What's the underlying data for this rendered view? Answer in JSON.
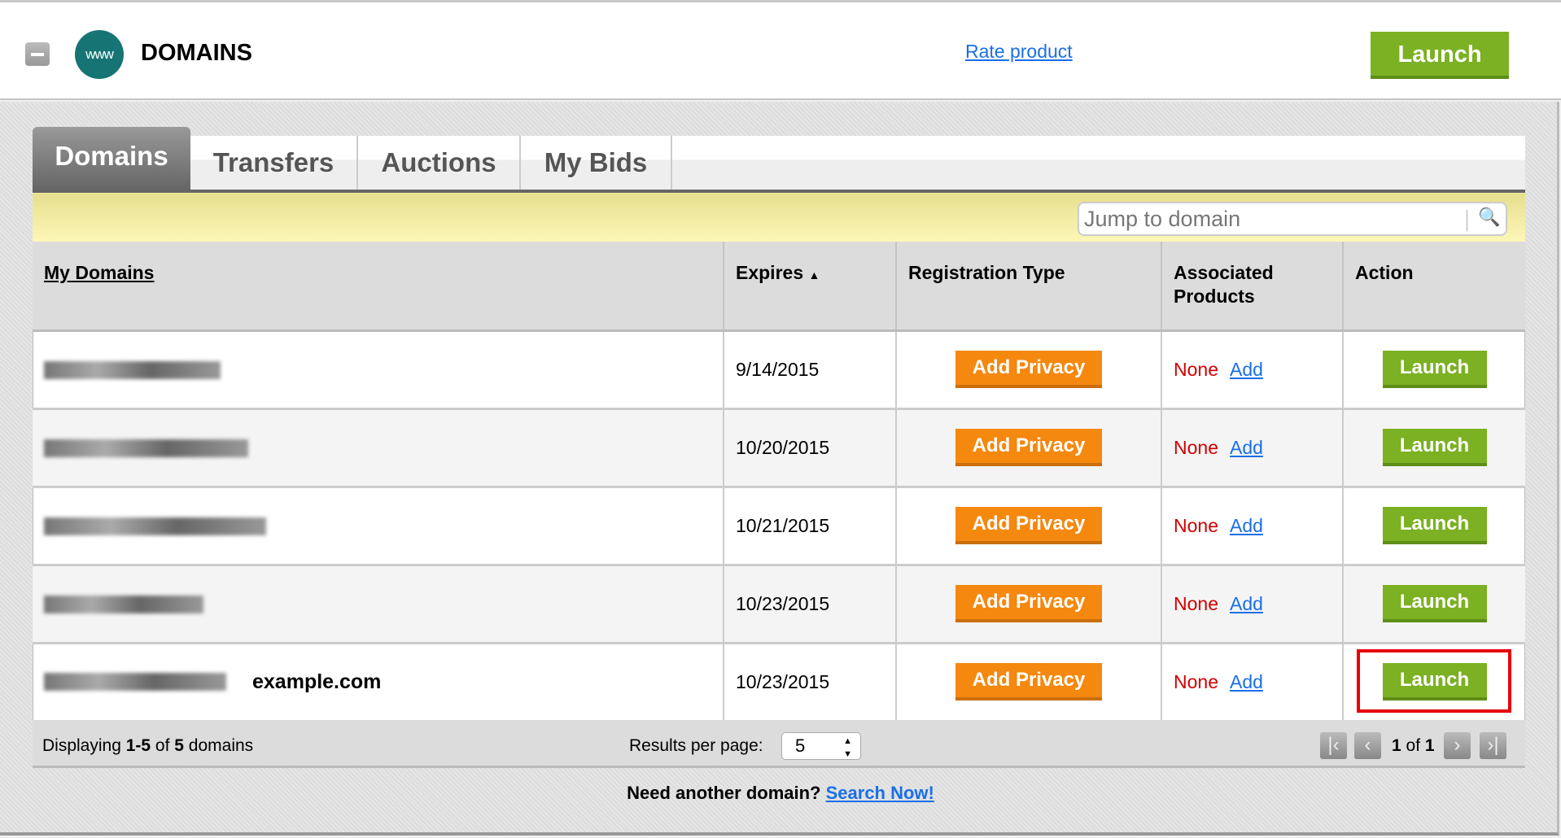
{
  "header": {
    "title": "DOMAINS",
    "logo_text": "www",
    "rate_link": "Rate product",
    "launch_label": "Launch"
  },
  "tabs": [
    {
      "label": "Domains",
      "active": true
    },
    {
      "label": "Transfers"
    },
    {
      "label": "Auctions"
    },
    {
      "label": "My Bids"
    }
  ],
  "search": {
    "placeholder": "Jump to domain"
  },
  "table": {
    "columns": [
      "My Domains",
      "Expires",
      "Registration Type",
      "Associated Products",
      "Action"
    ],
    "sort_indicator": "▲",
    "rows": [
      {
        "domain": "",
        "label": "",
        "expires": "9/14/2015",
        "registration": "Add Privacy",
        "products": "None",
        "add": "Add",
        "action": "Launch"
      },
      {
        "domain": "",
        "label": "",
        "expires": "10/20/2015",
        "registration": "Add Privacy",
        "products": "None",
        "add": "Add",
        "action": "Launch"
      },
      {
        "domain": "",
        "label": "",
        "expires": "10/21/2015",
        "registration": "Add Privacy",
        "products": "None",
        "add": "Add",
        "action": "Launch"
      },
      {
        "domain": "",
        "label": "",
        "expires": "10/23/2015",
        "registration": "Add Privacy",
        "products": "None",
        "add": "Add",
        "action": "Launch"
      },
      {
        "domain": "",
        "label": "example.com",
        "expires": "10/23/2015",
        "registration": "Add Privacy",
        "products": "None",
        "add": "Add",
        "action": "Launch",
        "highlighted": true
      }
    ]
  },
  "footer": {
    "displaying_prefix": "Displaying ",
    "range": "1-5",
    "of": " of ",
    "total": "5",
    "suffix": " domains",
    "results_label": "Results per page:",
    "per_page": "5",
    "page_prefix": "1",
    "page_of": " of ",
    "page_total": "1"
  },
  "bottom": {
    "text": "Need another domain? ",
    "link": "Search Now!"
  },
  "colors": {
    "launch": "#7bb122",
    "add_privacy": "#f5880f",
    "none": "#d10000",
    "link": "#1a6fe8",
    "highlight": "#e8000a"
  }
}
